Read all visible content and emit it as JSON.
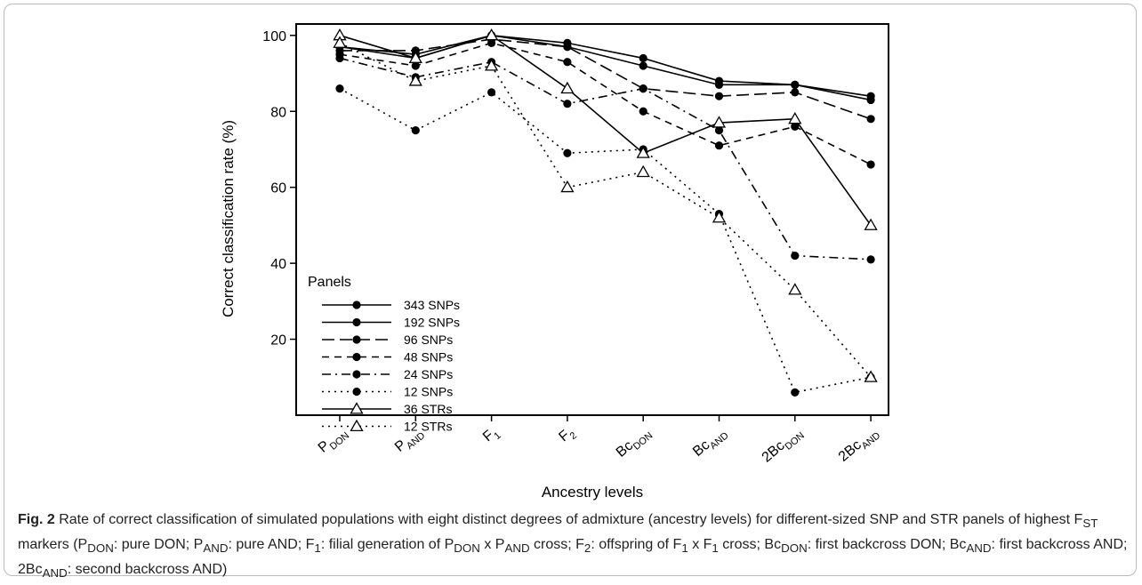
{
  "caption": {
    "label": "Fig. 2",
    "text": "Rate of correct classification of simulated populations with eight distinct degrees of admixture (ancestry levels) for different-sized SNP and STR panels of highest F_ST markers (P_DON: pure DON; P_AND: pure AND; F_1: filial generation of P_DON x P_AND cross; F_2: offspring of F_1 x F_1 cross; Bc_DON: first backcross DON; Bc_AND: first backcross AND; 2Bc_AND: second backcross AND)"
  },
  "chart_data": {
    "type": "line",
    "xlabel": "Ancestry levels",
    "ylabel": "Correct classification rate (%)",
    "ylim": [
      0,
      103
    ],
    "yticks": [
      20,
      40,
      60,
      80,
      100
    ],
    "categories": [
      {
        "base": "P",
        "sub": "DON"
      },
      {
        "base": "P",
        "sub": "AND"
      },
      {
        "base": "F",
        "sub": "1"
      },
      {
        "base": "F",
        "sub": "2"
      },
      {
        "base": "Bc",
        "sub": "DON"
      },
      {
        "base": "Bc",
        "sub": "AND"
      },
      {
        "base": "2Bc",
        "sub": "DON"
      },
      {
        "base": "2Bc",
        "sub": "AND"
      }
    ],
    "legend": {
      "title": "Panels",
      "position": "bottom-left"
    },
    "grid": false,
    "series": [
      {
        "name": "343 SNPs",
        "marker": "circle",
        "dash": "solid",
        "values": [
          97,
          95,
          100,
          98,
          94,
          88,
          87,
          84
        ]
      },
      {
        "name": "192 SNPs",
        "marker": "circle",
        "dash": "solid",
        "values": [
          97,
          94,
          100,
          97,
          92,
          87,
          87,
          83
        ]
      },
      {
        "name": "96 SNPs",
        "marker": "circle",
        "dash": "longdash",
        "values": [
          96,
          96,
          99,
          97,
          86,
          84,
          85,
          78
        ]
      },
      {
        "name": "48 SNPs",
        "marker": "circle",
        "dash": "dash",
        "values": [
          95,
          92,
          98,
          93,
          80,
          71,
          76,
          66
        ]
      },
      {
        "name": "24 SNPs",
        "marker": "circle",
        "dash": "dashdot",
        "values": [
          94,
          89,
          93,
          82,
          86,
          75,
          42,
          41
        ]
      },
      {
        "name": "12 SNPs",
        "marker": "circle",
        "dash": "dot",
        "values": [
          86,
          75,
          85,
          69,
          70,
          53,
          6,
          10
        ]
      },
      {
        "name": "36 STRs",
        "marker": "triangle",
        "dash": "solid",
        "values": [
          100,
          94,
          100,
          86,
          69,
          77,
          78,
          50
        ]
      },
      {
        "name": "12 STRs",
        "marker": "triangle",
        "dash": "dot",
        "values": [
          98,
          88,
          92,
          60,
          64,
          52,
          33,
          10
        ]
      }
    ]
  }
}
